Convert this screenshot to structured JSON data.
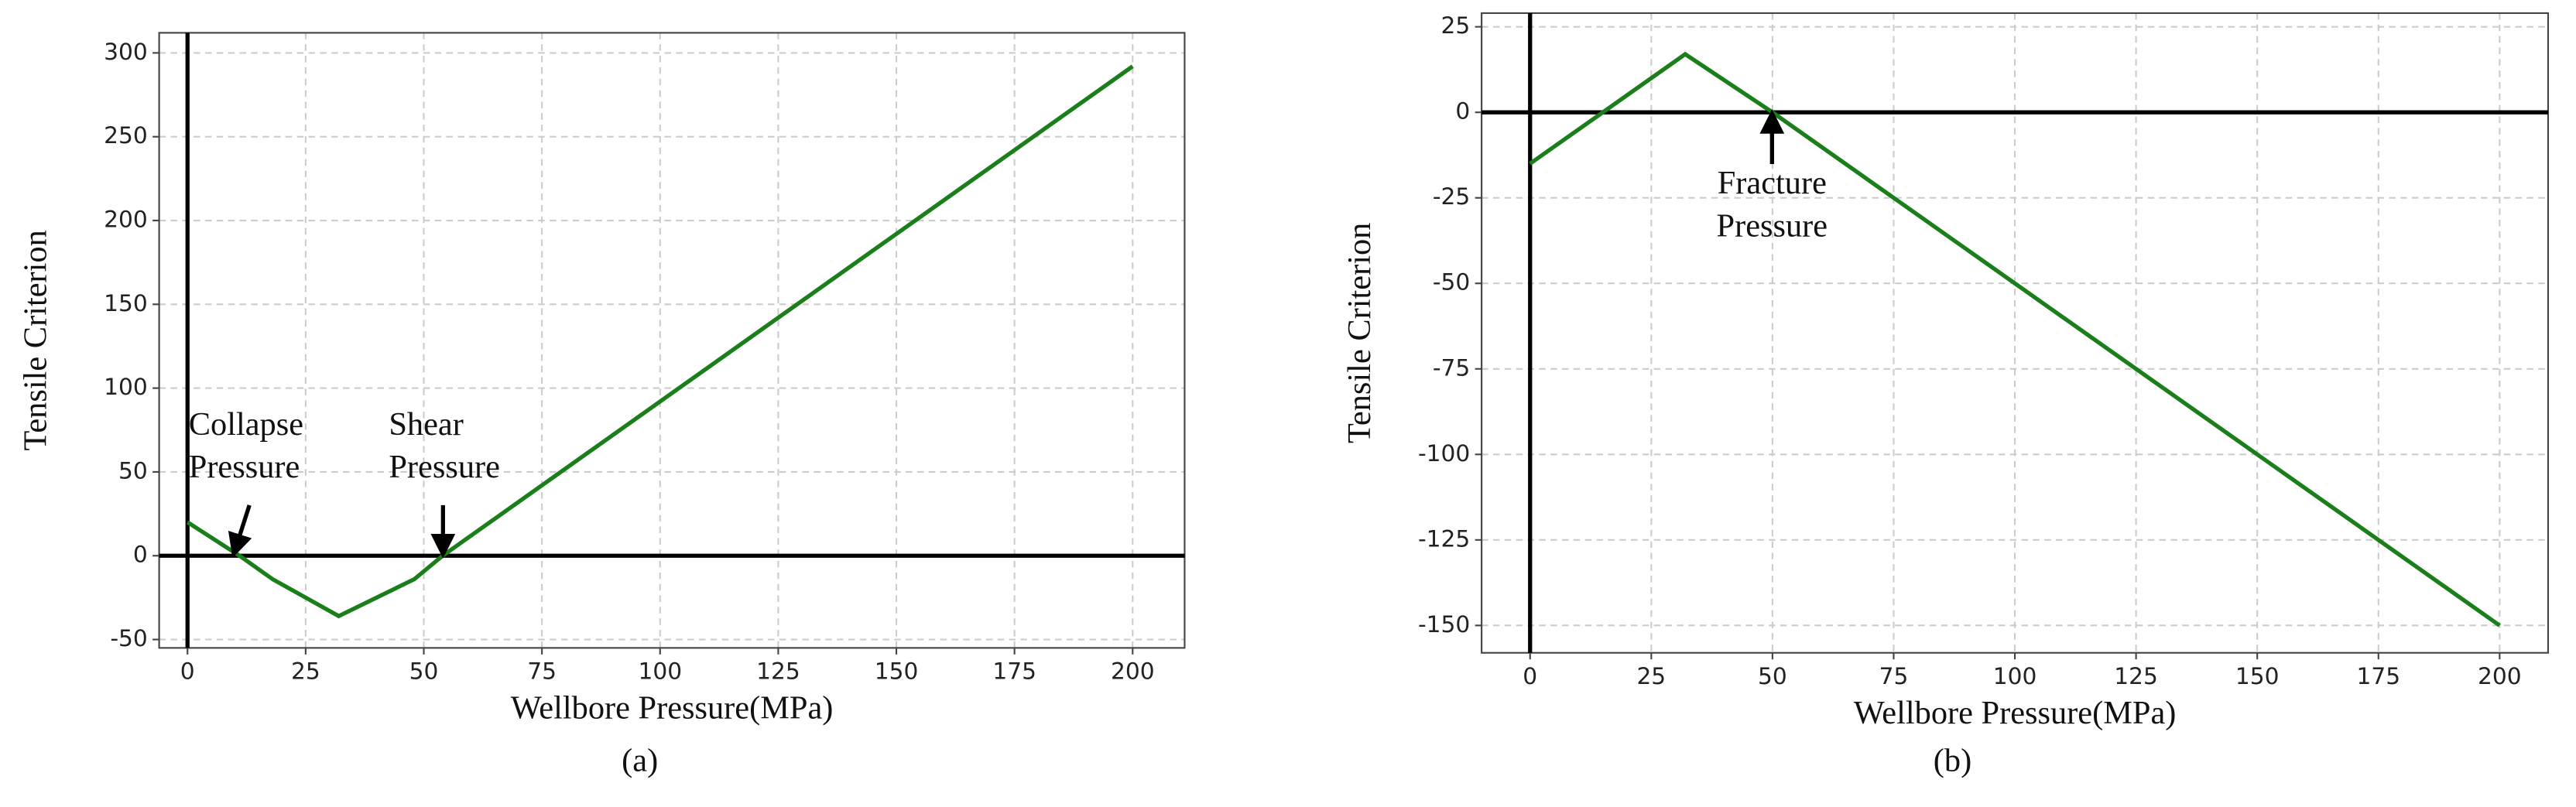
{
  "chart_data": [
    {
      "type": "line",
      "panel_label": "(a)",
      "xlabel": "Wellbore Pressure(MPa)",
      "ylabel": "Tensile Criterion",
      "x": [
        0,
        11,
        18,
        32,
        48,
        54,
        200
      ],
      "series": [
        {
          "color": "#1a7f1a",
          "values": [
            20,
            0,
            -14,
            -36,
            -14,
            0,
            292
          ]
        }
      ],
      "xlim": [
        -6,
        211
      ],
      "ylim": [
        -55,
        312
      ],
      "xticks": [
        0,
        25,
        50,
        75,
        100,
        125,
        150,
        175,
        200
      ],
      "yticks": [
        -50,
        0,
        50,
        100,
        150,
        200,
        250,
        300
      ],
      "grid": true,
      "annotations": [
        "Collapse Pressure",
        "Shear Pressure"
      ]
    },
    {
      "type": "line",
      "panel_label": "(b)",
      "xlabel": "Wellbore Pressure(MPa)",
      "ylabel": "Tensile Criterion",
      "x": [
        0,
        32,
        50,
        200
      ],
      "series": [
        {
          "color": "#1a7f1a",
          "values": [
            -15,
            17,
            0,
            -150
          ]
        }
      ],
      "xlim": [
        -10,
        210
      ],
      "ylim": [
        -158,
        29
      ],
      "xticks": [
        0,
        25,
        50,
        75,
        100,
        125,
        150,
        175,
        200
      ],
      "yticks": [
        -150,
        -125,
        -100,
        -75,
        -50,
        -25,
        0,
        25
      ],
      "grid": true,
      "annotations": [
        "Fracture Pressure"
      ]
    }
  ]
}
